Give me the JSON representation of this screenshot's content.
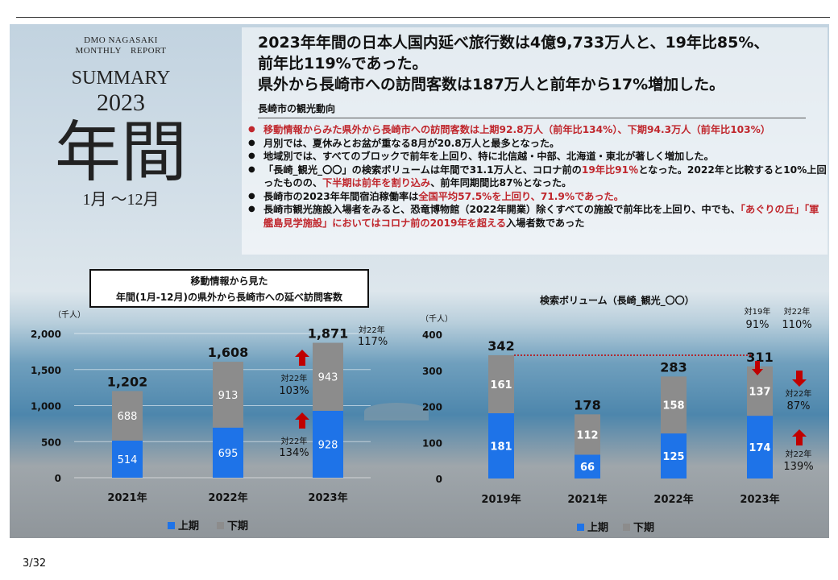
{
  "header": {
    "dmo": "DMO NAGASAKI",
    "report": "MONTHLY　REPORT",
    "summary": "SUMMARY",
    "year": "2023",
    "kanji": "年間",
    "period": "1月 ～12月"
  },
  "headline": {
    "line1": "2023年年間の日本人国内延べ旅行数は4億9,733万人と、19年比85%、",
    "line2": "前年比119%であった。",
    "line3": "県外から長崎市への訪問客数は187万人と前年から17%増加した。"
  },
  "section_title": "長崎市の観光動向",
  "bullets": {
    "b1": "移動情報からみた県外から長崎市への訪問客数は上期92.8万人（前年比134%）、下期94.3万人（前年比103%）",
    "b2": "月別では、夏休みとお盆が重なる8月が20.8万人と最多となった。",
    "b3": "地域別では、すべてのブロックで前年を上回り、特に北信越・中部、北海道・東北が著しく増加した。",
    "b4a": "「長崎_観光_〇〇」の検索ボリュームは年間で31.1万人と、コロナ前の",
    "b4b": "19年比91％",
    "b4c": "となった。2022年と比較すると10%上回ったものの、",
    "b4d": "下半期は前年を割り込み",
    "b4e": "、前年同期間比87％となった。",
    "b5a": "長崎市の2023年年間宿泊稼働率は",
    "b5b": "全国平均57.5%を上回り、71.9%であった。",
    "b6a": "長崎市観光施設入場者をみると、恐竜博物館（2022年開業）除くすべての施設で前年比を上回り、中でも、",
    "b6b": "「あぐりの丘」「軍艦島見学施設」においてはコロナ前の2019年を超える",
    "b6c": "入場者数であった"
  },
  "page_number": "3/32",
  "colors": {
    "first_half": "#1e73e8",
    "second_half": "#8c8c8c",
    "arrow": "#c00000",
    "dotted_line": "#c00000"
  },
  "chart_data": [
    {
      "type": "bar",
      "stacked": true,
      "title_line1": "移動情報から見た",
      "title_line2": "年間(1月-12月)の県外から長崎市への延べ訪問客数",
      "unit_label": "（千人）",
      "categories": [
        "2021年",
        "2022年",
        "2023年"
      ],
      "series": [
        {
          "name": "上期",
          "values": [
            514,
            695,
            928
          ]
        },
        {
          "name": "下期",
          "values": [
            688,
            913,
            943
          ]
        }
      ],
      "totals": [
        "1,202",
        "1,608",
        "1,871"
      ],
      "ylim": [
        0,
        2000
      ],
      "yticks": [
        "0",
        "500",
        "1,000",
        "1,500",
        "2,000"
      ],
      "annotations": [
        {
          "label": "対22年",
          "value": "117%",
          "position": "total",
          "arrow": "none"
        },
        {
          "label": "対22年",
          "value": "103%",
          "position": "second-half",
          "arrow": "up"
        },
        {
          "label": "対22年",
          "value": "134%",
          "position": "first-half",
          "arrow": "up"
        }
      ],
      "legend": "bottom"
    },
    {
      "type": "bar",
      "stacked": true,
      "title": "検索ボリューム（長崎_観光_〇〇）",
      "unit_label": "（千人）",
      "categories": [
        "2019年",
        "2021年",
        "2022年",
        "2023年"
      ],
      "series": [
        {
          "name": "上期",
          "values": [
            181,
            66,
            125,
            174
          ]
        },
        {
          "name": "下期",
          "values": [
            161,
            112,
            158,
            137
          ]
        }
      ],
      "totals": [
        "342",
        "178",
        "283",
        "311"
      ],
      "ylim": [
        0,
        400
      ],
      "yticks": [
        "0",
        "100",
        "200",
        "300",
        "400"
      ],
      "annotations": [
        {
          "label": "対19年",
          "value": "91%",
          "position": "total",
          "arrow": "down"
        },
        {
          "label": "対22年",
          "value": "110%",
          "position": "total",
          "arrow": "none"
        },
        {
          "label": "対22年",
          "value": "87%",
          "position": "second-half",
          "arrow": "down"
        },
        {
          "label": "対22年",
          "value": "139%",
          "position": "first-half",
          "arrow": "up"
        }
      ],
      "legend": "bottom"
    }
  ]
}
